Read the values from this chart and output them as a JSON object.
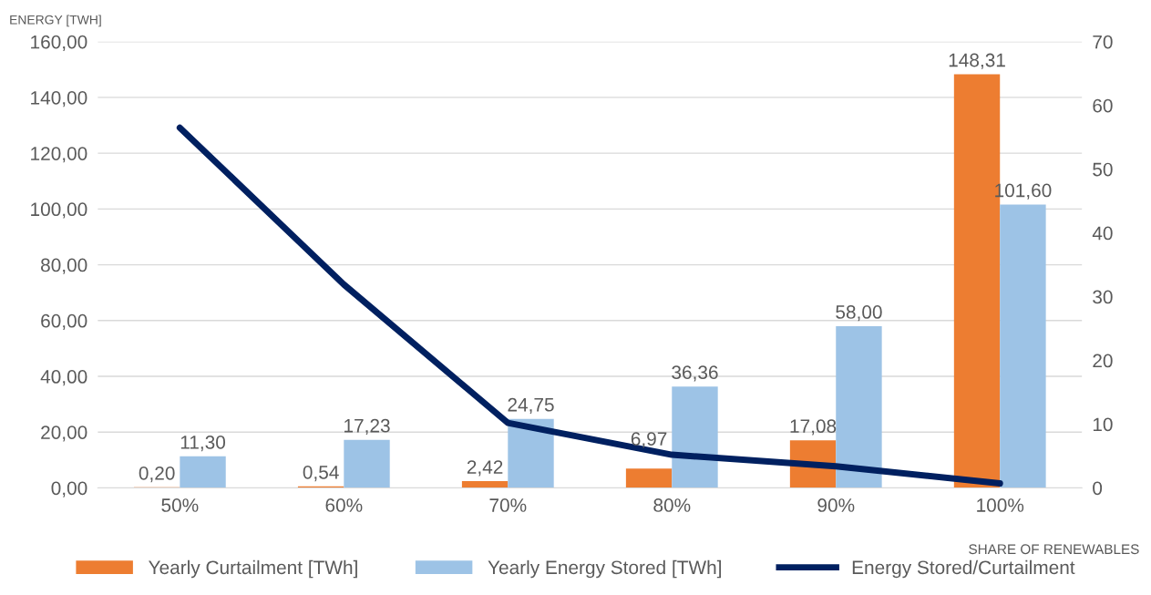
{
  "chart_data": {
    "type": "bar",
    "categories": [
      "50%",
      "60%",
      "70%",
      "80%",
      "90%",
      "100%"
    ],
    "xlabel": "SHARE OF RENEWABLES",
    "ylabel": "ENERGY [TWH]",
    "series": [
      {
        "name": "Yearly Curtailment [TWh]",
        "color": "#ed7d31",
        "values": [
          0.2,
          0.54,
          2.42,
          6.97,
          17.08,
          148.31
        ],
        "value_labels": [
          "0,20",
          "0,54",
          "2,42",
          "6,97",
          "17,08",
          "148,31"
        ]
      },
      {
        "name": "Yearly Energy Stored [TWh]",
        "color": "#9dc3e6",
        "values": [
          11.3,
          17.23,
          24.75,
          36.36,
          58.0,
          101.6
        ],
        "value_labels": [
          "11,30",
          "17,23",
          "24,75",
          "36,36",
          "58,00",
          "101,60"
        ]
      },
      {
        "name": "Energy Stored/Curtailment",
        "type": "line",
        "axis": "y2",
        "color": "#002060",
        "values": [
          56.5,
          31.9,
          10.2,
          5.2,
          3.4,
          0.7
        ]
      }
    ],
    "ylim": [
      0,
      160
    ],
    "yticks": [
      {
        "value": 0,
        "label": "0,00"
      },
      {
        "value": 20,
        "label": "20,00"
      },
      {
        "value": 40,
        "label": "40,00"
      },
      {
        "value": 60,
        "label": "60,00"
      },
      {
        "value": 80,
        "label": "80,00"
      },
      {
        "value": 100,
        "label": "100,00"
      },
      {
        "value": 120,
        "label": "120,00"
      },
      {
        "value": 140,
        "label": "140,00"
      },
      {
        "value": 160,
        "label": "160,00"
      }
    ],
    "y2lim": [
      0,
      70
    ],
    "y2ticks": [
      0,
      10,
      20,
      30,
      40,
      50,
      60,
      70
    ],
    "grid": "y",
    "legend": "bottom",
    "marker": "none",
    "line_style": "solid"
  }
}
